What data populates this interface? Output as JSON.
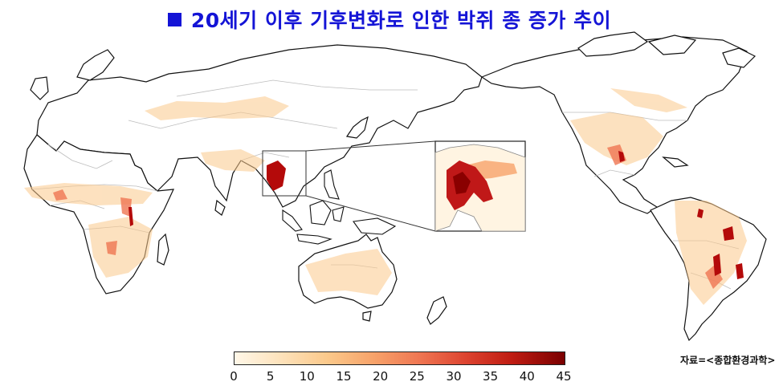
{
  "title": "20세기 이후 기후변화로 인한 박쥐 종 증가 추이",
  "legend": {
    "ticks": [
      "0",
      "5",
      "10",
      "15",
      "20",
      "25",
      "30",
      "35",
      "40",
      "45"
    ],
    "colors": [
      "#fff7e8",
      "#fde2bb",
      "#fbc98b",
      "#f7a36a",
      "#ef7652",
      "#dd4430",
      "#bf1c12",
      "#7a0000"
    ]
  },
  "source": "자료=<종합환경과학>",
  "colors": {
    "title": "#1414d6",
    "land_outline": "#111111",
    "borders": "#bdbdbd",
    "hotspot": "#b40a0a"
  }
}
